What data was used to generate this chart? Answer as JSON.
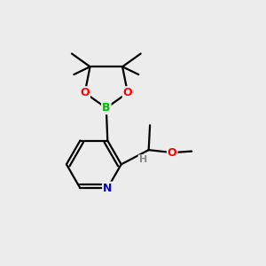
{
  "background_color": "#ececec",
  "bond_color": "#000000",
  "atom_colors": {
    "B": "#00bb00",
    "O": "#ff0000",
    "N": "#0000cc",
    "C": "#000000",
    "H": "#888888"
  },
  "figsize": [
    3.0,
    3.0
  ],
  "dpi": 100,
  "bond_lw": 1.6
}
